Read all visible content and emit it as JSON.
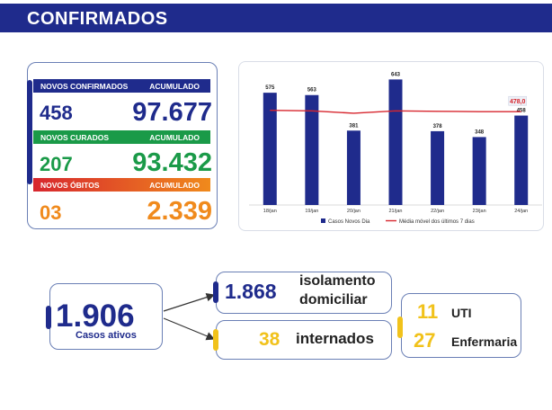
{
  "header": {
    "title": "CONFIRMADOS"
  },
  "stats": {
    "confirmados": {
      "label": "NOVOS CONFIRMADOS",
      "acumulado_label": "ACUMULADO",
      "novos": "458",
      "acumulado": "97.677"
    },
    "curados": {
      "label": "NOVOS CURADOS",
      "acumulado_label": "ACUMULADO",
      "novos": "207",
      "acumulado": "93.432"
    },
    "obitos": {
      "label": "NOVOS ÓBITOS",
      "acumulado_label": "ACUMULADO",
      "novos": "03",
      "acumulado": "2.339"
    }
  },
  "colors": {
    "navy": "#1f2b8c",
    "green": "#1a9a48",
    "orange": "#f08a1c",
    "yellow": "#f1c21b",
    "red": "#d7262e",
    "outline": "#6a7fb5"
  },
  "chart_data": {
    "type": "bar",
    "categories": [
      "18/jan",
      "19/jan",
      "20/jan",
      "21/jan",
      "22/jan",
      "23/jan",
      "24/jan"
    ],
    "series": [
      {
        "name": "Casos Novos Dia",
        "type": "bar",
        "values": [
          575,
          563,
          381,
          643,
          378,
          348,
          458
        ],
        "color": "#1f2b8c"
      },
      {
        "name": "Média móvel dos últimos 7 dias",
        "type": "line",
        "values": [
          485,
          482,
          470,
          482,
          480,
          478,
          478.0
        ],
        "color": "#d7262e"
      }
    ],
    "highlight_label": "478,0",
    "ylim": [
      0,
      700
    ],
    "title": "",
    "xlabel": "",
    "ylabel": "",
    "legend_position": "bottom"
  },
  "summary": {
    "casos_ativos": {
      "value": "1.906",
      "label": "Casos ativos"
    },
    "isolamento": {
      "value": "1.868",
      "label_line1": "isolamento",
      "label_line2": "domiciliar"
    },
    "internados": {
      "value": "38",
      "label": "internados"
    },
    "uti": {
      "value": "11",
      "label": "UTI"
    },
    "enfermaria": {
      "value": "27",
      "label": "Enfermaria"
    }
  }
}
